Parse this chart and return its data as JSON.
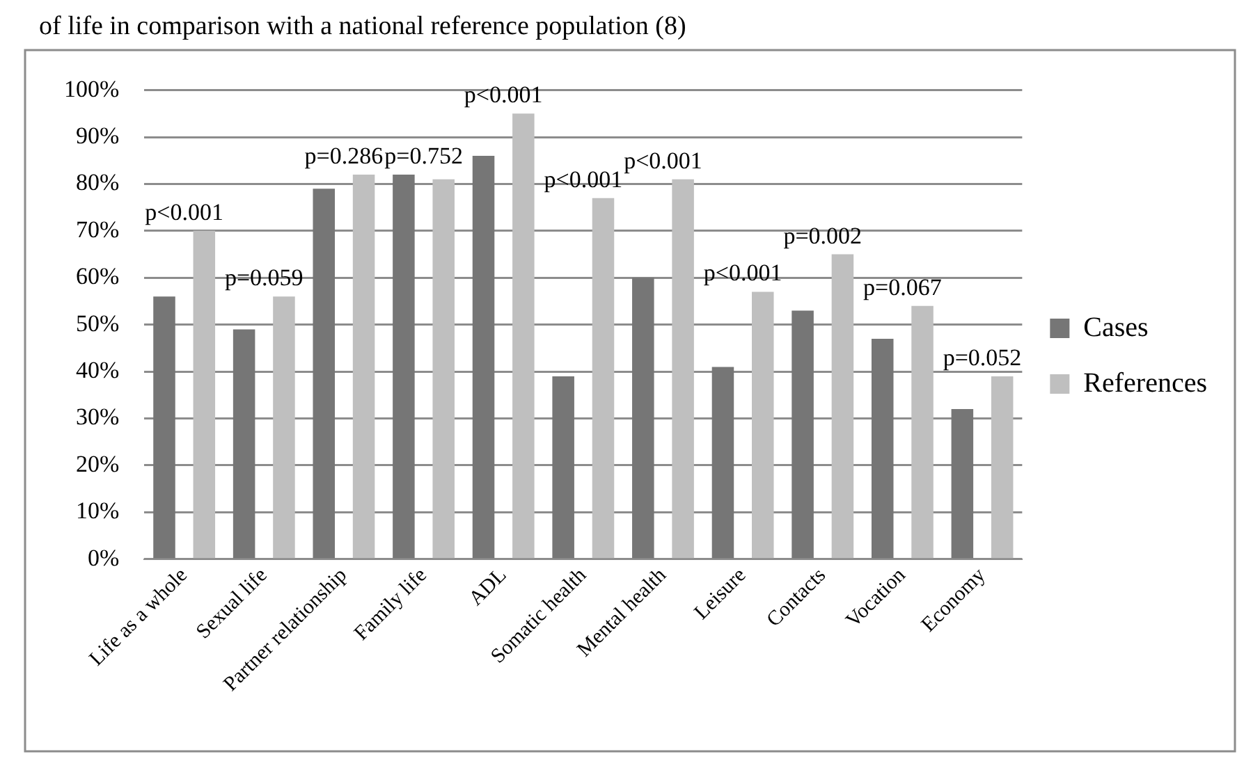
{
  "chart_data": {
    "type": "bar",
    "title": "of life in comparison with a national reference population (8)",
    "categories": [
      "Life as a whole",
      "Sexual life",
      "Partner relationship",
      "Family life",
      "ADL",
      "Somatic health",
      "Mental health",
      "Leisure",
      "Contacts",
      "Vocation",
      "Economy"
    ],
    "series": [
      {
        "name": "Cases",
        "color": "#767676",
        "values": [
          56,
          49,
          79,
          82,
          86,
          39,
          60,
          41,
          53,
          47,
          32
        ]
      },
      {
        "name": "References",
        "color": "#bfbfbf",
        "values": [
          70,
          56,
          82,
          81,
          95,
          77,
          81,
          57,
          65,
          54,
          39
        ]
      }
    ],
    "ylim": [
      0,
      100
    ],
    "yticks": [
      {
        "value": 0,
        "label": "0%"
      },
      {
        "value": 10,
        "label": "10%"
      },
      {
        "value": 20,
        "label": "20%"
      },
      {
        "value": 30,
        "label": "30%"
      },
      {
        "value": 40,
        "label": "40%"
      },
      {
        "value": 50,
        "label": "50%"
      },
      {
        "value": 60,
        "label": "60%"
      },
      {
        "value": 70,
        "label": "70%"
      },
      {
        "value": 80,
        "label": "80%"
      },
      {
        "value": 90,
        "label": "90%"
      },
      {
        "value": 100,
        "label": "100%"
      }
    ],
    "grid": "y",
    "legend": "right",
    "annotations": [
      "p<0.001",
      "p=0.059",
      "p=0.286",
      "p=0.752",
      "p<0.001",
      "p<0.001",
      "p<0.001",
      "p<0.001",
      "p=0.002",
      "p=0.067",
      "p=0.052"
    ]
  }
}
